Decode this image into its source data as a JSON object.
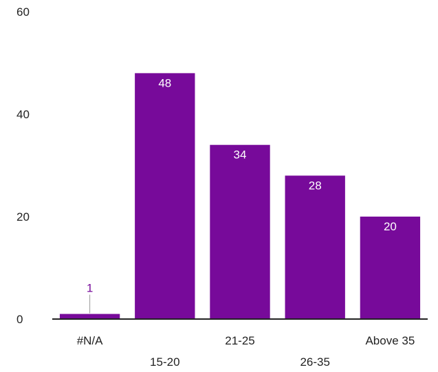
{
  "chart_data": {
    "type": "bar",
    "categories": [
      "#N/A",
      "15-20",
      "21-25",
      "26-35",
      "Above 35"
    ],
    "values": [
      1,
      48,
      34,
      28,
      20
    ],
    "ylim": [
      0,
      60
    ],
    "yticks": [
      "0",
      "20",
      "40",
      "60"
    ],
    "grid": false,
    "legend": "none",
    "bar_color": "#770a9a",
    "inside_label_color": "#ffffff",
    "outside_label_color": "#770a9a",
    "axis_color": "#222222"
  }
}
